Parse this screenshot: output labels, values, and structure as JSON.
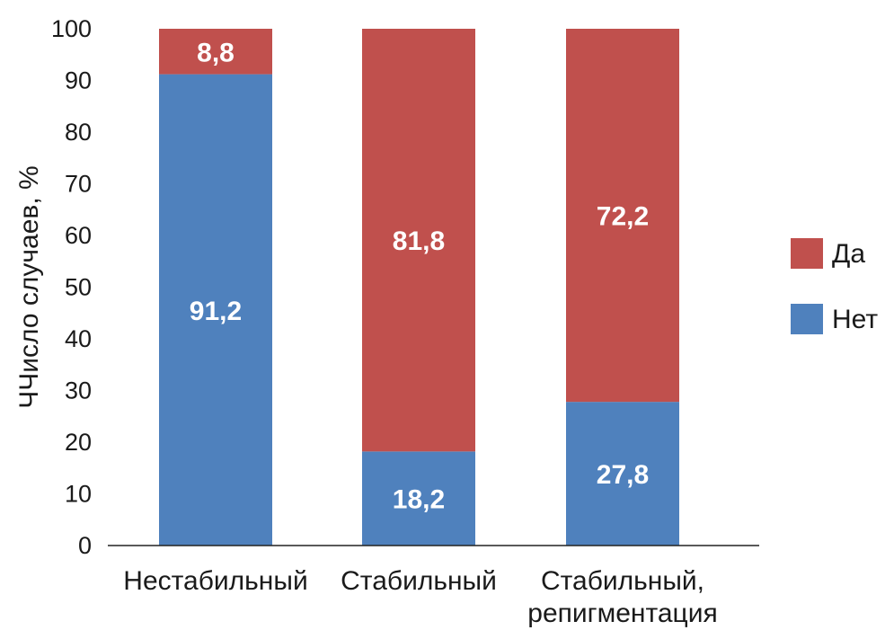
{
  "chart_data": {
    "type": "bar",
    "stacked": true,
    "categories": [
      [
        "Нестабильный"
      ],
      [
        "Стабильный"
      ],
      [
        "Стабильный,",
        "репигментация"
      ]
    ],
    "series": [
      {
        "name": "Нет",
        "color": "#4f81bd",
        "values": [
          91.2,
          18.2,
          27.8
        ],
        "labels": [
          "91,2",
          "18,2",
          "27,8"
        ]
      },
      {
        "name": "Да",
        "color": "#c0504d",
        "values": [
          8.8,
          81.8,
          72.2
        ],
        "labels": [
          "8,8",
          "81,8",
          "72,2"
        ]
      }
    ],
    "ylabel": "ЧЧисло случаев, %",
    "ylim": [
      0,
      100
    ],
    "yticks": [
      0,
      10,
      20,
      30,
      40,
      50,
      60,
      70,
      80,
      90,
      100
    ],
    "grid": false,
    "legend": {
      "position": "right",
      "order": [
        "Да",
        "Нет"
      ]
    }
  }
}
